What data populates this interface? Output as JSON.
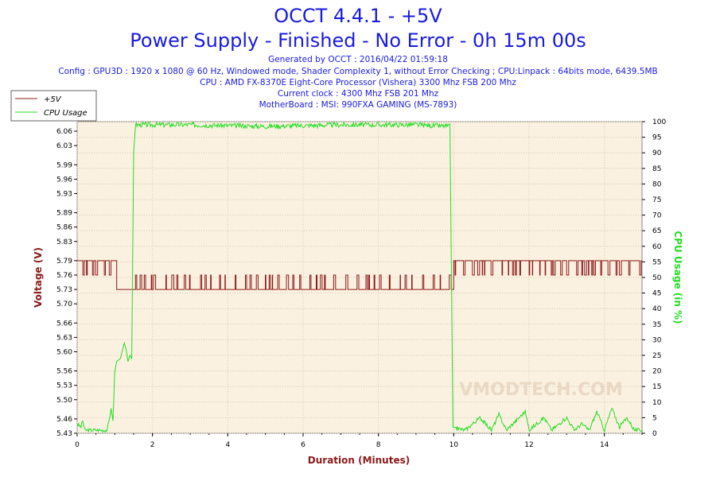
{
  "header": {
    "title": "OCCT 4.4.1 - +5V",
    "subtitle": "Power Supply - Finished - No Error - 0h 15m 00s",
    "generated": "Generated by OCCT : 2016/04/22 01:59:18",
    "config": "Config : GPU3D : 1920 x 1080 @ 60 Hz, Windowed mode, Shader Complexity 1, without Error Checking ; CPU:Linpack : 64bits mode, 6439.5MB",
    "cpu": "CPU : AMD FX-8370E Eight-Core Processor (Vishera) 3300 Mhz FSB 200 Mhz",
    "clock": "Current clock : 4300 Mhz FSB 201 Mhz",
    "motherboard": "MotherBoard : MSI: 990FXA GAMING (MS-7893)"
  },
  "watermark": "VMODTECH.COM",
  "colors": {
    "voltage": "#8b1a1a",
    "cpu": "#22dd22",
    "title": "#1a1ae0",
    "plot_bg": "#fbf1e1",
    "grid": "#d8c8b0"
  },
  "chart_data": {
    "type": "line",
    "xlabel": "Duration (Minutes)",
    "ylabel": "Voltage (V)",
    "y2label": "CPU Usage (in %)",
    "xlim": [
      0,
      15
    ],
    "ylim": [
      5.43,
      6.08
    ],
    "y2lim": [
      0,
      100
    ],
    "x_ticks": [
      "0",
      "2",
      "4",
      "6",
      "8",
      "10",
      "12",
      "14"
    ],
    "y_ticks": [
      "5.43",
      "5.46",
      "5.50",
      "5.53",
      "5.56",
      "5.60",
      "5.63",
      "5.66",
      "5.70",
      "5.73",
      "5.76",
      "5.79",
      "5.83",
      "5.86",
      "5.89",
      "5.93",
      "5.96",
      "5.99",
      "6.03",
      "6.06"
    ],
    "y2_ticks": [
      "0",
      "5",
      "10",
      "15",
      "20",
      "25",
      "30",
      "35",
      "40",
      "45",
      "50",
      "55",
      "60",
      "65",
      "70",
      "75",
      "80",
      "85",
      "90",
      "95",
      "100"
    ],
    "grid": true,
    "legend_position": "top-left",
    "series": [
      {
        "name": "+5V",
        "axis": "left",
        "segments": [
          {
            "x": [
              0.0,
              1.05
            ],
            "low": 5.76,
            "high": 5.79,
            "mostly": 5.79
          },
          {
            "x": [
              1.05,
              1.5
            ],
            "low": 5.73,
            "high": 5.73,
            "mostly": 5.73
          },
          {
            "x": [
              1.5,
              10.0
            ],
            "low": 5.73,
            "high": 5.76,
            "mostly": 5.73
          },
          {
            "x": [
              10.0,
              15.0
            ],
            "low": 5.76,
            "high": 5.79,
            "mostly": 5.79
          }
        ]
      },
      {
        "name": "CPU Usage",
        "axis": "right",
        "points": [
          [
            0.0,
            3
          ],
          [
            0.1,
            2
          ],
          [
            0.15,
            4
          ],
          [
            0.2,
            1
          ],
          [
            0.5,
            1
          ],
          [
            0.8,
            1
          ],
          [
            0.9,
            8
          ],
          [
            0.95,
            4
          ],
          [
            1.0,
            20
          ],
          [
            1.05,
            23
          ],
          [
            1.15,
            24
          ],
          [
            1.25,
            29
          ],
          [
            1.3,
            27
          ],
          [
            1.35,
            23
          ],
          [
            1.4,
            25
          ],
          [
            1.45,
            24
          ],
          [
            1.5,
            90
          ],
          [
            1.55,
            99
          ],
          [
            3.0,
            99
          ],
          [
            5.0,
            98.5
          ],
          [
            7.0,
            99
          ],
          [
            9.0,
            99
          ],
          [
            9.9,
            98.5
          ],
          [
            9.98,
            2
          ],
          [
            10.3,
            1
          ],
          [
            10.7,
            5
          ],
          [
            11.0,
            1
          ],
          [
            11.2,
            6
          ],
          [
            11.4,
            1
          ],
          [
            11.9,
            7
          ],
          [
            12.0,
            1
          ],
          [
            12.4,
            5
          ],
          [
            12.6,
            1
          ],
          [
            13.0,
            5
          ],
          [
            13.2,
            1
          ],
          [
            13.4,
            3
          ],
          [
            13.6,
            1
          ],
          [
            13.8,
            7
          ],
          [
            14.0,
            1
          ],
          [
            14.2,
            8
          ],
          [
            14.4,
            2
          ],
          [
            14.6,
            5
          ],
          [
            14.8,
            1
          ],
          [
            15.0,
            1
          ]
        ]
      }
    ]
  }
}
